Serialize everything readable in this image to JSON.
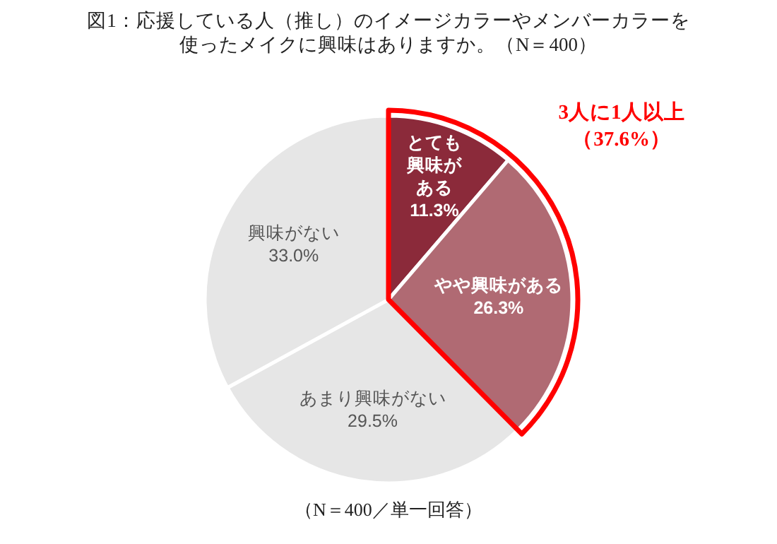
{
  "chart_data": {
    "type": "pie",
    "title": "図1：応援している人（推し）のイメージカラーやメンバーカラーを使ったメイクに興味はありますか。（N＝400）",
    "categories": [
      "とても興味がある",
      "やや興味がある",
      "あまり興味がない",
      "興味がない"
    ],
    "values": [
      11.3,
      26.3,
      29.5,
      33.0
    ],
    "colors": [
      "#8b2a3a",
      "#b06a73",
      "#e6e6e6",
      "#e6e6e6"
    ],
    "value_labels": [
      "11.3%",
      "26.3%",
      "29.5%",
      "33.0%"
    ],
    "annotations": [
      "3人に1人以上（37.6%）",
      "（N＝400／単一回答）"
    ]
  }
}
